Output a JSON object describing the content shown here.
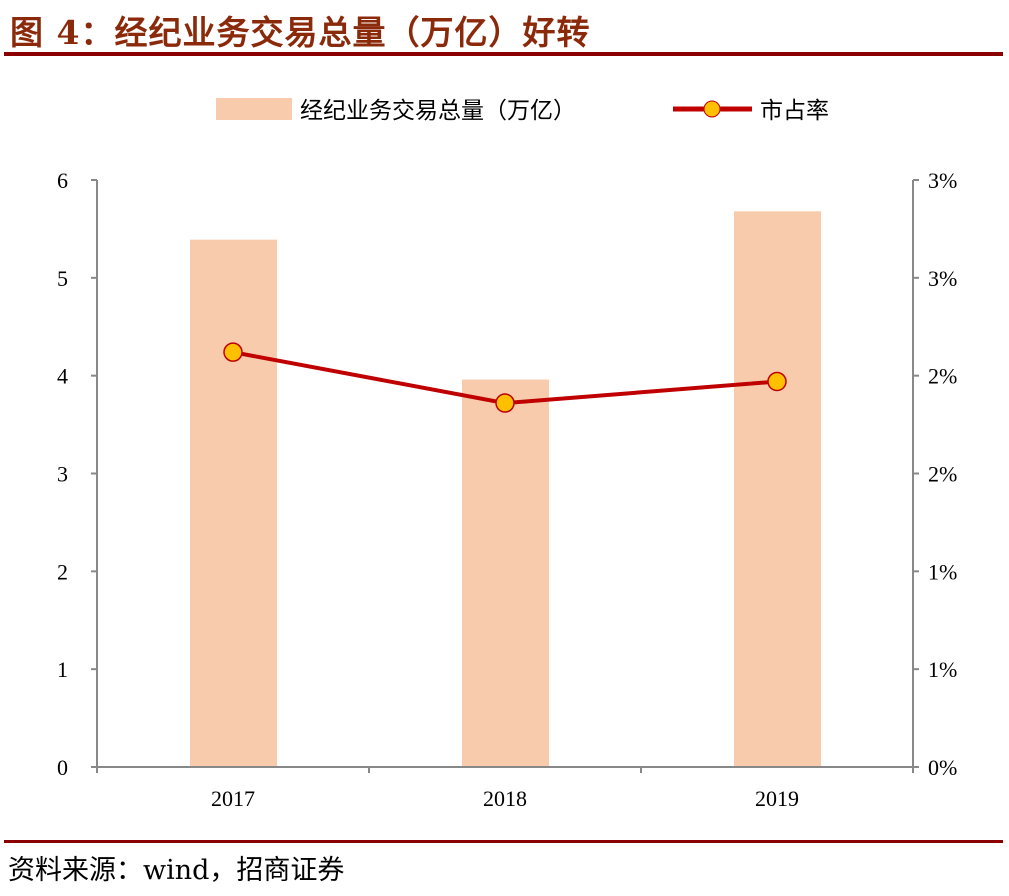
{
  "title": "图 4：经纪业务交易总量（万亿）好转",
  "source": "资料来源：wind，招商证券",
  "chart_data": {
    "type": "bar+line",
    "categories": [
      "2017",
      "2018",
      "2019"
    ],
    "series": [
      {
        "name": "经纪业务交易总量（万亿）",
        "type": "bar",
        "axis": "left",
        "color": "#f8cbad",
        "values": [
          5.39,
          3.96,
          5.68
        ]
      },
      {
        "name": "市占率",
        "type": "line",
        "axis": "right",
        "color": "#c00000",
        "marker_color": "#ffc000",
        "values": [
          2.12,
          1.86,
          1.97
        ]
      }
    ],
    "left_axis": {
      "ylim": [
        0,
        6
      ],
      "ticks": [
        "0",
        "1",
        "2",
        "3",
        "4",
        "5",
        "6"
      ]
    },
    "right_axis": {
      "ylim": [
        0,
        3
      ],
      "unit": "%",
      "ticks": [
        "0%",
        "1%",
        "1%",
        "2%",
        "2%",
        "3%",
        "3%"
      ]
    },
    "legend": "top-center",
    "grid": false
  }
}
